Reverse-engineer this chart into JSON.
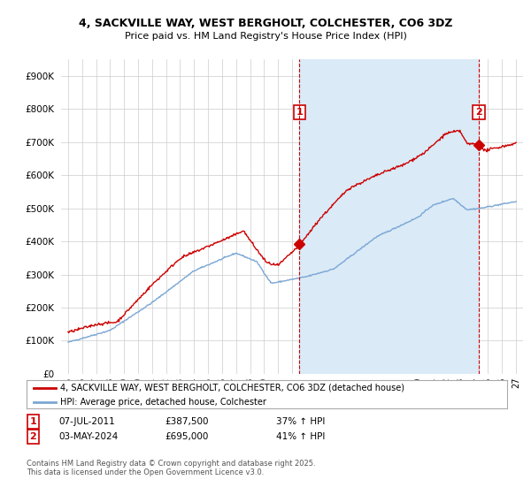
{
  "title_line1": "4, SACKVILLE WAY, WEST BERGHOLT, COLCHESTER, CO6 3DZ",
  "title_line2": "Price paid vs. HM Land Registry's House Price Index (HPI)",
  "legend_line1": "4, SACKVILLE WAY, WEST BERGHOLT, COLCHESTER, CO6 3DZ (detached house)",
  "legend_line2": "HPI: Average price, detached house, Colchester",
  "footnote": "Contains HM Land Registry data © Crown copyright and database right 2025.\nThis data is licensed under the Open Government Licence v3.0.",
  "transaction1": {
    "label": "1",
    "date": "07-JUL-2011",
    "price": "£387,500",
    "hpi": "37% ↑ HPI",
    "year": 2011.52
  },
  "transaction2": {
    "label": "2",
    "date": "03-MAY-2024",
    "price": "£695,000",
    "hpi": "41% ↑ HPI",
    "year": 2024.34
  },
  "red_color": "#cc0000",
  "blue_color": "#7ba7d4",
  "shade_color": "#daeaf7",
  "background_color": "#ffffff",
  "grid_color": "#cccccc",
  "ylim": [
    0,
    950000
  ],
  "xlim_start": 1994.5,
  "xlim_end": 2027.5,
  "fig_width": 6.0,
  "fig_height": 5.6,
  "dpi": 100
}
